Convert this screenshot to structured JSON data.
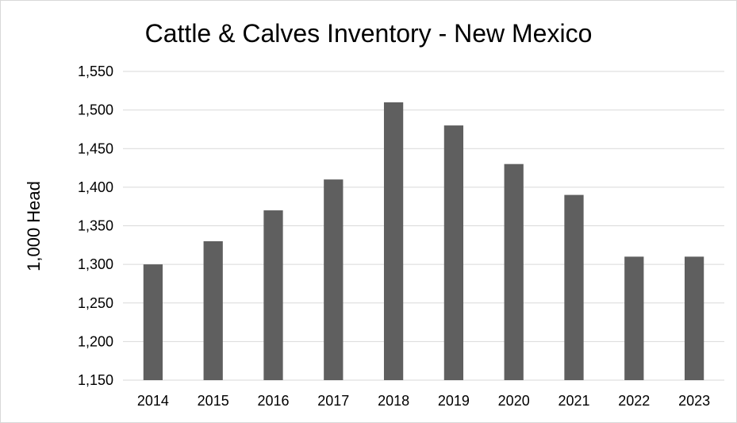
{
  "chart_data": {
    "type": "bar",
    "title": "Cattle & Calves Inventory - New Mexico",
    "xlabel": "",
    "ylabel": "1,000 Head",
    "categories": [
      "2014",
      "2015",
      "2016",
      "2017",
      "2018",
      "2019",
      "2020",
      "2021",
      "2022",
      "2023"
    ],
    "values": [
      1300,
      1330,
      1370,
      1410,
      1510,
      1480,
      1430,
      1390,
      1310,
      1310
    ],
    "ylim": [
      1150,
      1550
    ],
    "yticks": [
      1150,
      1200,
      1250,
      1300,
      1350,
      1400,
      1450,
      1500,
      1550
    ],
    "ytick_labels": [
      "1,150",
      "1,200",
      "1,250",
      "1,300",
      "1,350",
      "1,400",
      "1,450",
      "1,500",
      "1,550"
    ],
    "grid": true,
    "legend": "none",
    "bar_color": "#5f5f5f",
    "grid_color": "#d9d9d9"
  }
}
